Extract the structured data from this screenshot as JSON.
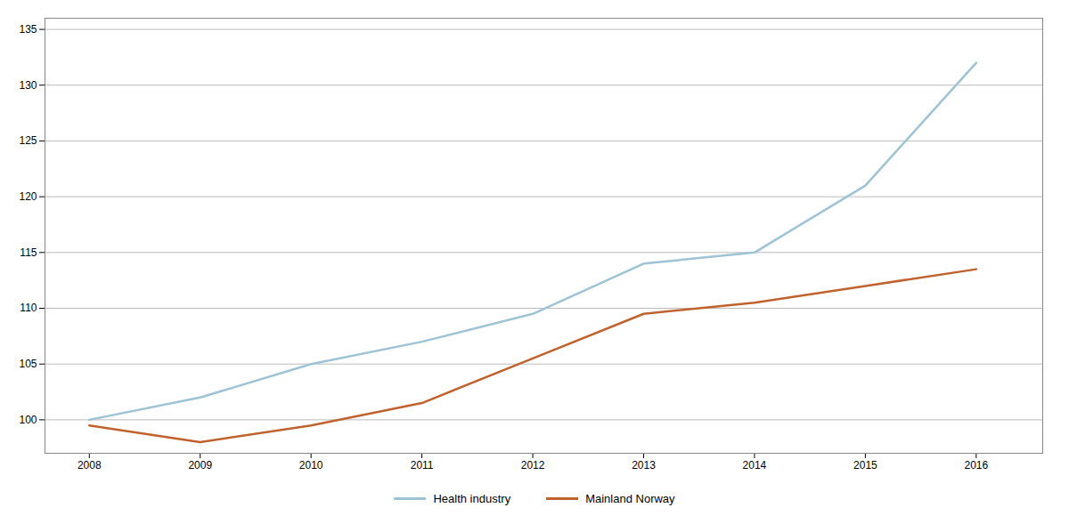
{
  "chart_data": {
    "type": "line",
    "x": [
      2008,
      2009,
      2010,
      2011,
      2012,
      2013,
      2014,
      2015,
      2016
    ],
    "series": [
      {
        "name": "Health industry",
        "color": "#9DC3D4",
        "values": [
          100,
          102,
          105,
          107,
          109.5,
          114,
          115,
          121,
          132
        ]
      },
      {
        "name": "Mainland Norway",
        "color": "#C0622E",
        "values": [
          99.5,
          98,
          99.5,
          101.5,
          105.5,
          109.5,
          110.5,
          112,
          113.5
        ]
      }
    ],
    "xlim": [
      2007.6,
      2016.6
    ],
    "xticks": [
      2008,
      2009,
      2010,
      2011,
      2012,
      2013,
      2014,
      2015,
      2016
    ],
    "ylim": [
      97,
      136
    ],
    "yticks": [
      100,
      105,
      110,
      115,
      120,
      125,
      130,
      135
    ],
    "grid": true,
    "legend": "bottom"
  }
}
